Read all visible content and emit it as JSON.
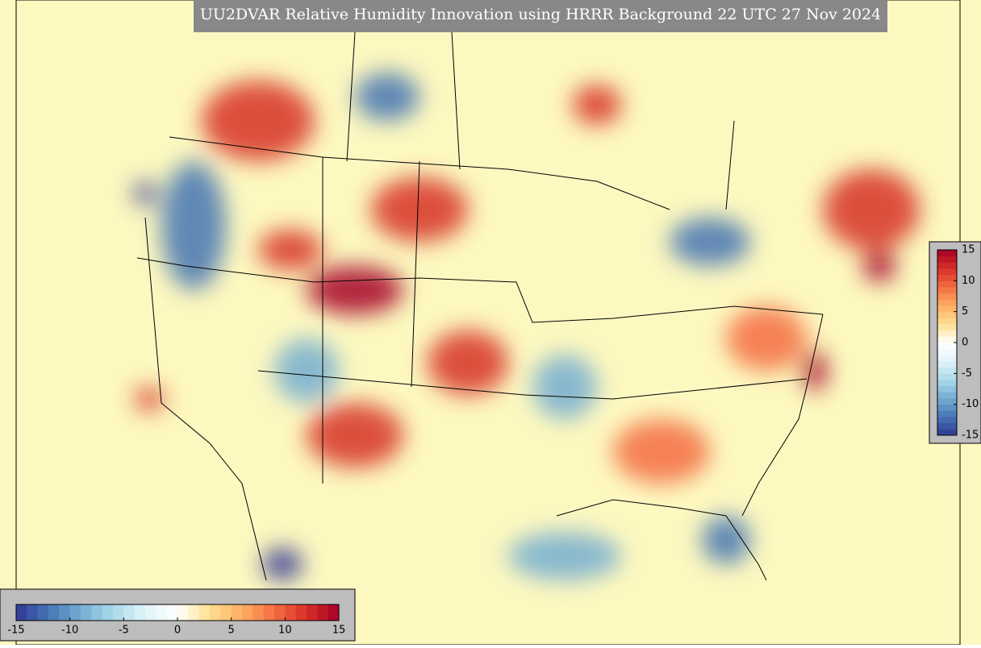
{
  "title": "UU2DVAR Relative Humidity Innovation using HRRR Background 22 UTC 27 Nov 2024",
  "colormap": [
    "#313695",
    "#4575b4",
    "#74add1",
    "#abd9e9",
    "#e0f3f8",
    "#ffffff",
    "#fee090",
    "#fdae61",
    "#f46d43",
    "#d73027",
    "#a50026"
  ],
  "colorbars": [
    {
      "orientation": "horizontal",
      "lim": [
        -15,
        15
      ],
      "ticks": [
        -15,
        -10,
        -5,
        0,
        5,
        10,
        15
      ]
    },
    {
      "orientation": "vertical",
      "lim": [
        -15,
        15
      ],
      "ticks": [
        -15,
        -10,
        -5,
        0,
        5,
        10,
        15
      ]
    }
  ]
}
